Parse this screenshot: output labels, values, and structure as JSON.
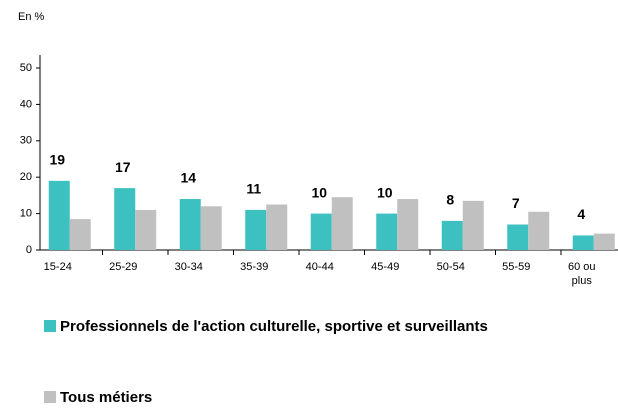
{
  "chart_data": {
    "type": "bar",
    "title": "En %",
    "categories": [
      "15-24",
      "25-29",
      "30-34",
      "35-39",
      "40-44",
      "45-49",
      "50-54",
      "55-59",
      "60 ou plus"
    ],
    "series": [
      {
        "name": "Professionnels de l'action culturelle, sportive et surveillants",
        "color": "#3cc0c0",
        "values": [
          19,
          17,
          14,
          11,
          10,
          10,
          8,
          7,
          4
        ]
      },
      {
        "name": "Tous métiers",
        "color": "#c0c0c0",
        "values": [
          8.5,
          11,
          12,
          12.5,
          14.5,
          14,
          13.5,
          10.5,
          4.5
        ]
      }
    ],
    "ylim": [
      0,
      50
    ],
    "yticks": [
      0,
      10,
      20,
      30,
      40,
      50
    ],
    "grid": false,
    "legend": "bottom"
  }
}
